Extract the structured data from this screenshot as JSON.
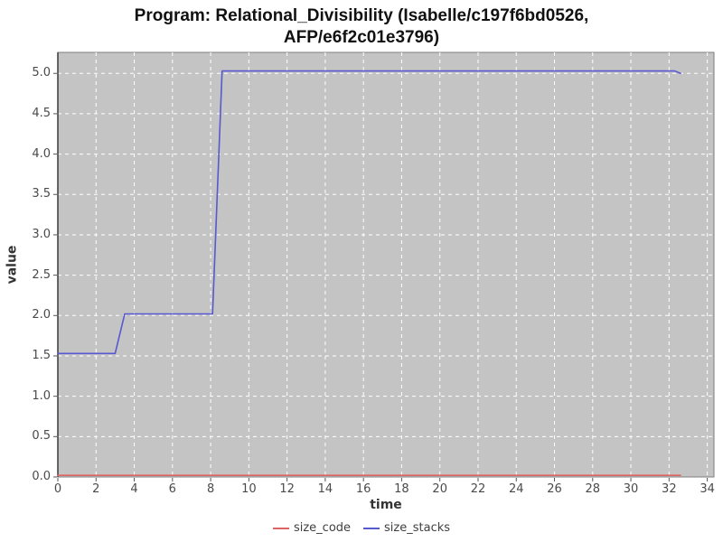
{
  "title": {
    "line1": "Program: Relational_Divisibility (Isabelle/c197f6bd0526,",
    "line2": "AFP/e6f2c01e3796)"
  },
  "chart_data": {
    "type": "line",
    "title": "Program: Relational_Divisibility (Isabelle/c197f6bd0526, AFP/e6f2c01e3796)",
    "xlabel": "time",
    "ylabel": "value",
    "xlim": [
      0,
      34.35
    ],
    "ylim": [
      0,
      5.26
    ],
    "x_ticks": [
      0,
      2,
      4,
      6,
      8,
      10,
      12,
      14,
      16,
      18,
      20,
      22,
      24,
      26,
      28,
      30,
      32,
      34
    ],
    "y_ticks": [
      0.0,
      0.5,
      1.0,
      1.5,
      2.0,
      2.5,
      3.0,
      3.5,
      4.0,
      4.5,
      5.0
    ],
    "grid": true,
    "legend_position": "bottom",
    "series": [
      {
        "name": "size_code",
        "color": "#dd6464",
        "points": [
          [
            0,
            0.02
          ],
          [
            32.6,
            0.02
          ]
        ]
      },
      {
        "name": "size_stacks",
        "color": "#5858cf",
        "points": [
          [
            0,
            1.53
          ],
          [
            3.0,
            1.53
          ],
          [
            3.5,
            2.02
          ],
          [
            8.1,
            2.02
          ],
          [
            8.6,
            5.03
          ],
          [
            32.3,
            5.03
          ],
          [
            32.6,
            5.0
          ]
        ]
      }
    ]
  },
  "colors": {
    "plot_background": "#c4c4c4",
    "plot_border": "#7e7e7e",
    "axis_line": "#3a3a3a",
    "gridline": "#ffffff",
    "tick_mark": "#555555",
    "tick_text": "#4a4a4a"
  }
}
